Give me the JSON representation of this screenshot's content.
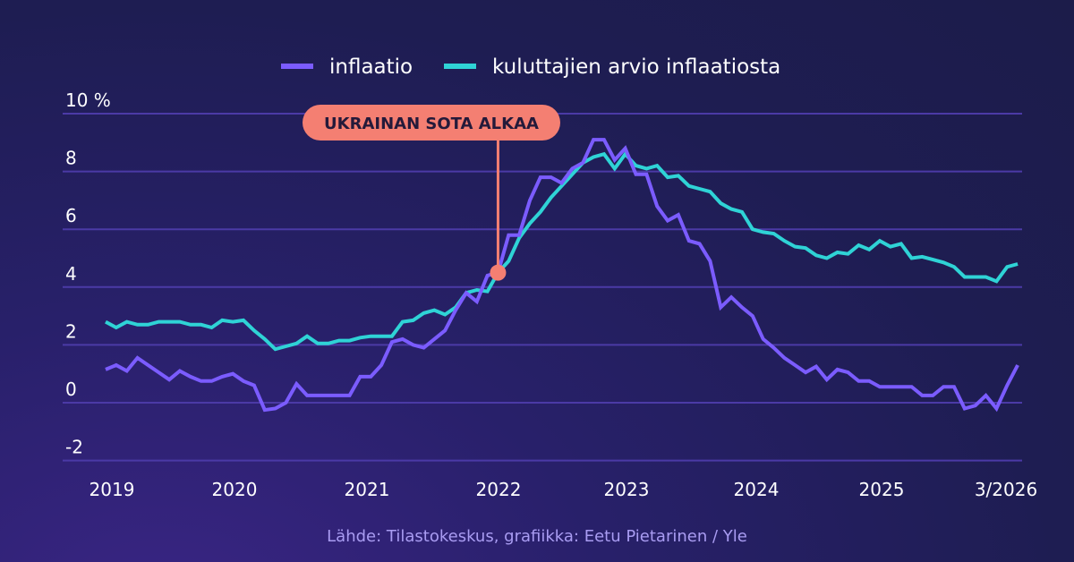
{
  "chart_data": {
    "type": "line",
    "title": "",
    "xlabel": "",
    "ylabel": "",
    "y_unit_label": "10 %",
    "ylim": [
      -2,
      10
    ],
    "yticks": [
      "10 %",
      "8",
      "6",
      "4",
      "2",
      "0",
      "-2"
    ],
    "ytick_values": [
      10,
      8,
      6,
      4,
      2,
      0,
      -2
    ],
    "xticks": [
      "2019",
      "2020",
      "2021",
      "2022",
      "2023",
      "2024",
      "2025",
      "3/2026"
    ],
    "x_start": "2019-01",
    "x_end": "2026-03",
    "x_frequency": "monthly",
    "grid": true,
    "legend_position": "top",
    "series": [
      {
        "name": "inflaatio",
        "color": "#7b5cff",
        "values": [
          1.15,
          1.3,
          1.1,
          1.55,
          1.3,
          1.05,
          0.8,
          1.1,
          0.9,
          0.75,
          0.75,
          0.9,
          1.0,
          0.75,
          0.6,
          -0.25,
          -0.2,
          0.0,
          0.65,
          0.25,
          0.25,
          0.25,
          0.25,
          0.25,
          0.9,
          0.9,
          1.3,
          2.1,
          2.2,
          2.0,
          1.9,
          2.2,
          2.5,
          3.2,
          3.8,
          3.5,
          4.4,
          4.5,
          5.8,
          5.8,
          7.0,
          7.8,
          7.8,
          7.6,
          8.1,
          8.3,
          9.1,
          9.1,
          8.4,
          8.8,
          7.9,
          7.9,
          6.8,
          6.3,
          6.5,
          5.6,
          5.5,
          4.9,
          3.3,
          3.65,
          3.3,
          3.0,
          2.2,
          1.9,
          1.55,
          1.3,
          1.05,
          1.25,
          0.8,
          1.15,
          1.05,
          0.75,
          0.75,
          0.55,
          0.55,
          0.55,
          0.55,
          0.25,
          0.25,
          0.55,
          0.55,
          -0.2,
          -0.1,
          0.25,
          -0.2,
          0.6,
          1.3
        ]
      },
      {
        "name": "kuluttajien arvio inflaatiosta",
        "color": "#2fd3d6",
        "values": [
          2.8,
          2.6,
          2.8,
          2.7,
          2.7,
          2.8,
          2.8,
          2.8,
          2.7,
          2.7,
          2.6,
          2.85,
          2.8,
          2.85,
          2.5,
          2.2,
          1.85,
          1.95,
          2.05,
          2.3,
          2.05,
          2.05,
          2.15,
          2.15,
          2.25,
          2.3,
          2.3,
          2.3,
          2.8,
          2.85,
          3.1,
          3.2,
          3.05,
          3.3,
          3.8,
          3.9,
          3.85,
          4.5,
          4.9,
          5.7,
          6.2,
          6.6,
          7.1,
          7.5,
          7.9,
          8.3,
          8.5,
          8.6,
          8.1,
          8.6,
          8.2,
          8.1,
          8.2,
          7.8,
          7.85,
          7.5,
          7.4,
          7.3,
          6.9,
          6.7,
          6.6,
          6.0,
          5.9,
          5.85,
          5.6,
          5.4,
          5.35,
          5.1,
          5.0,
          5.2,
          5.15,
          5.45,
          5.3,
          5.6,
          5.4,
          5.5,
          5.0,
          5.05,
          4.95,
          4.85,
          4.7,
          4.35,
          4.35,
          4.35,
          4.2,
          4.7,
          4.8
        ]
      }
    ],
    "annotations": [
      {
        "label": "UKRAINAN SOTA ALKAA",
        "x": "2022-02",
        "y": 4.5,
        "color": "#f47f72"
      }
    ]
  },
  "source": "Lähde: Tilastokeskus, grafiikka: Eetu Pietarinen / Yle",
  "colors": {
    "grid": "#4b3aa6",
    "annotation": "#f47f72"
  }
}
